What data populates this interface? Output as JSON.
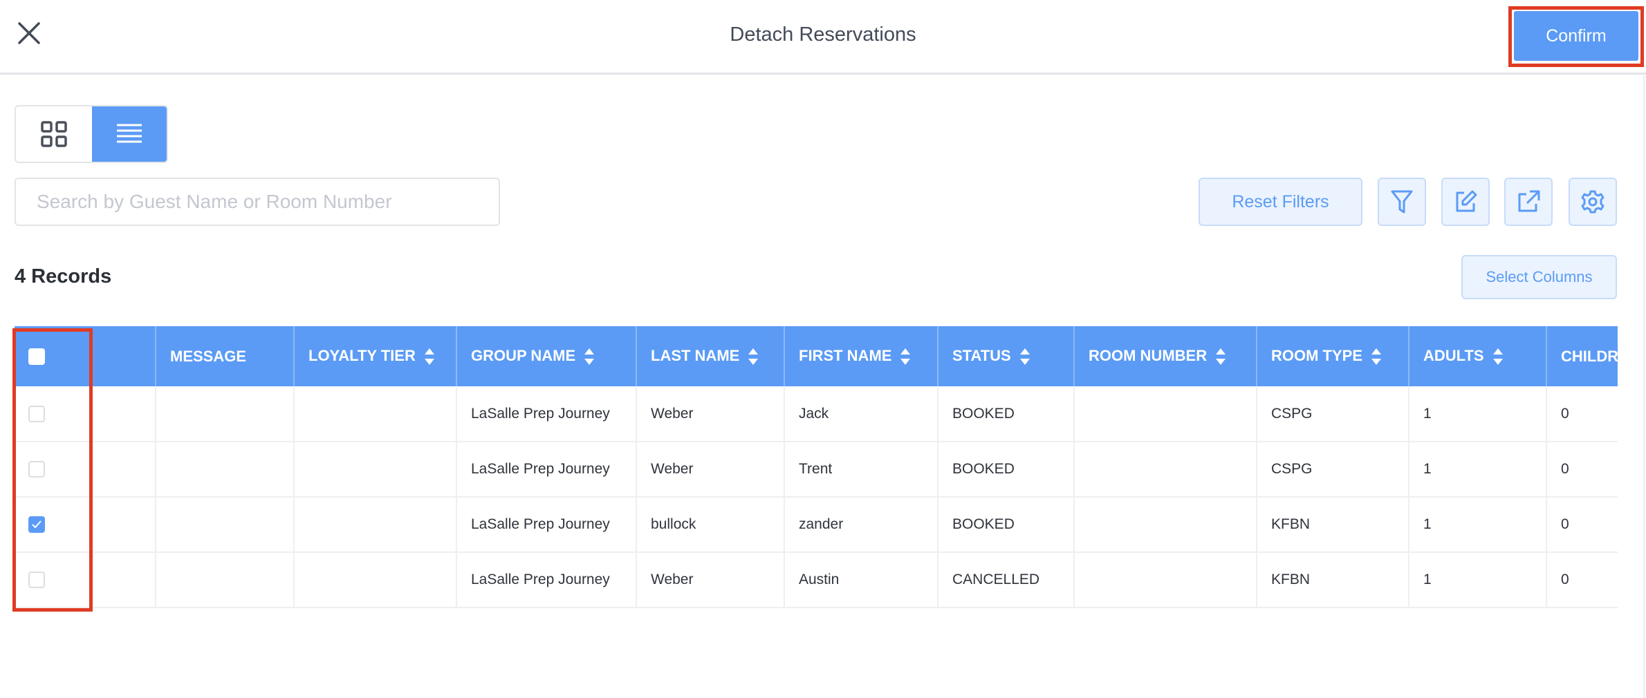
{
  "header": {
    "title": "Detach Reservations",
    "close_icon": "close-icon",
    "confirm_label": "Confirm"
  },
  "colors": {
    "accent": "#5b9bf5",
    "highlight": "#e03b24",
    "toolbar_bg": "#ebf3fe"
  },
  "view_toggle": {
    "options": [
      {
        "icon": "grid-icon",
        "active": false
      },
      {
        "icon": "list-icon",
        "active": true
      }
    ]
  },
  "search": {
    "placeholder": "Search by Guest Name or Room Number",
    "value": ""
  },
  "toolbar": {
    "reset_filters": "Reset Filters",
    "icons": [
      "filter-icon",
      "edit-icon",
      "export-icon",
      "settings-icon"
    ],
    "select_columns": "Select Columns"
  },
  "records_label": "4 Records",
  "table": {
    "columns": [
      {
        "label": "",
        "sortable": false
      },
      {
        "label": "MESSAGE",
        "sortable": false
      },
      {
        "label": "LOYALTY TIER",
        "sortable": true
      },
      {
        "label": "GROUP NAME",
        "sortable": true
      },
      {
        "label": "LAST NAME",
        "sortable": true
      },
      {
        "label": "FIRST NAME",
        "sortable": true
      },
      {
        "label": "STATUS",
        "sortable": true
      },
      {
        "label": "ROOM NUMBER",
        "sortable": true
      },
      {
        "label": "ROOM TYPE",
        "sortable": true
      },
      {
        "label": "ADULTS",
        "sortable": true
      },
      {
        "label": "CHILDREN",
        "sortable": false
      }
    ],
    "rows": [
      {
        "checked": false,
        "cells": [
          "",
          "",
          "LaSalle Prep Journey",
          "Weber",
          "Jack",
          "BOOKED",
          "",
          "CSPG",
          "1",
          "0"
        ]
      },
      {
        "checked": false,
        "cells": [
          "",
          "",
          "LaSalle Prep Journey",
          "Weber",
          "Trent",
          "BOOKED",
          "",
          "CSPG",
          "1",
          "0"
        ]
      },
      {
        "checked": true,
        "cells": [
          "",
          "",
          "LaSalle Prep Journey",
          "bullock",
          "zander",
          "BOOKED",
          "",
          "KFBN",
          "1",
          "0"
        ]
      },
      {
        "checked": false,
        "cells": [
          "",
          "",
          "LaSalle Prep Journey",
          "Weber",
          "Austin",
          "CANCELLED",
          "",
          "KFBN",
          "1",
          "0"
        ]
      }
    ]
  }
}
